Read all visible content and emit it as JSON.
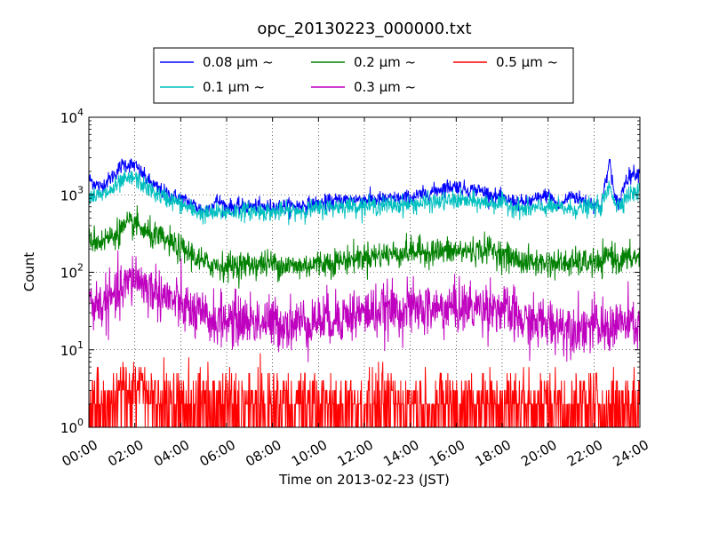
{
  "chart_data": {
    "type": "line",
    "title": "opc_20130223_000000.txt",
    "xlabel": "Time on 2013-02-23 (JST)",
    "ylabel": "Count",
    "y_scale": "log",
    "ylim": [
      1,
      10000
    ],
    "xlim": [
      "00:00",
      "24:00"
    ],
    "grid": true,
    "legend_position": "top-center, above plot",
    "x_ticks": [
      "00:00",
      "02:00",
      "04:00",
      "06:00",
      "08:00",
      "10:00",
      "12:00",
      "14:00",
      "16:00",
      "18:00",
      "20:00",
      "22:00",
      "24:00"
    ],
    "x_ticks_hours": [
      0,
      2,
      4,
      6,
      8,
      10,
      12,
      14,
      16,
      18,
      20,
      22,
      24
    ],
    "y_ticks": [
      {
        "value": 1,
        "base": "10",
        "exp": "0"
      },
      {
        "value": 10,
        "base": "10",
        "exp": "1"
      },
      {
        "value": 100,
        "base": "10",
        "exp": "2"
      },
      {
        "value": 1000,
        "base": "10",
        "exp": "3"
      },
      {
        "value": 10000,
        "base": "10",
        "exp": "4"
      }
    ],
    "series": [
      {
        "name": "0.08 μm ~",
        "color": "#0000ff",
        "x_hours": [
          0,
          0.5,
          1,
          1.5,
          2,
          2.5,
          3,
          3.5,
          4,
          4.5,
          5,
          5.3,
          5.6,
          6,
          7,
          8,
          9,
          10,
          11,
          12,
          13,
          14,
          14.8,
          15.5,
          16,
          16.5,
          17,
          18,
          19,
          20,
          20.5,
          21,
          21.5,
          22,
          22.3,
          22.7,
          22.9,
          23.1,
          23.4,
          23.7,
          24
        ],
        "values": [
          1600,
          1250,
          1700,
          2500,
          2400,
          1600,
          1200,
          1000,
          900,
          760,
          620,
          700,
          850,
          700,
          700,
          700,
          720,
          770,
          850,
          880,
          870,
          920,
          1050,
          1250,
          1300,
          1150,
          1150,
          870,
          770,
          1000,
          700,
          1000,
          850,
          780,
          700,
          2800,
          850,
          800,
          1600,
          1900,
          1900
        ],
        "noise": 0.05
      },
      {
        "name": "0.1 μm ~",
        "color": "#00bfbf",
        "x_hours": [
          0,
          0.5,
          1,
          1.5,
          2,
          2.5,
          3,
          3.5,
          4,
          4.5,
          5,
          5.5,
          6,
          7,
          8,
          9,
          10,
          11,
          12,
          13,
          14,
          15,
          16,
          17,
          18,
          19,
          20,
          21,
          22,
          22.3,
          22.7,
          23,
          23.5,
          24
        ],
        "values": [
          1000,
          950,
          1150,
          1500,
          1650,
          1250,
          1000,
          870,
          760,
          640,
          560,
          580,
          600,
          620,
          600,
          620,
          660,
          720,
          720,
          730,
          750,
          800,
          850,
          800,
          780,
          640,
          700,
          650,
          700,
          700,
          1300,
          700,
          1000,
          1100
        ],
        "noise": 0.06
      },
      {
        "name": "0.2 μm ~",
        "color": "#008000",
        "x_hours": [
          0,
          0.5,
          1,
          1.5,
          2,
          2.5,
          3,
          3.5,
          4,
          4.5,
          5,
          6,
          7,
          8,
          9,
          10,
          11,
          12,
          13,
          14,
          15,
          16,
          17,
          17.5,
          18,
          18.5,
          19,
          20,
          21,
          22,
          22.3,
          22.7,
          23,
          24
        ],
        "values": [
          270,
          250,
          290,
          370,
          430,
          320,
          280,
          240,
          200,
          170,
          130,
          120,
          125,
          130,
          118,
          130,
          140,
          160,
          170,
          185,
          185,
          185,
          190,
          200,
          170,
          150,
          135,
          130,
          130,
          135,
          120,
          180,
          140,
          160
        ],
        "noise": 0.09
      },
      {
        "name": "0.3 μm ~",
        "color": "#bf00bf",
        "x_hours": [
          0,
          0.5,
          1,
          1.5,
          2,
          2.5,
          3,
          3.5,
          4,
          4.5,
          5,
          6,
          7,
          8,
          9,
          10,
          11,
          12,
          13,
          14,
          15,
          16,
          17,
          17.5,
          18,
          18.5,
          19,
          20,
          21,
          22,
          22.5,
          23,
          24
        ],
        "values": [
          40,
          38,
          45,
          60,
          90,
          65,
          55,
          45,
          38,
          30,
          25,
          24,
          24,
          22,
          22,
          24,
          27,
          30,
          32,
          34,
          33,
          35,
          35,
          38,
          32,
          28,
          22,
          22,
          20,
          20,
          18,
          22,
          20
        ],
        "noise": 0.17
      },
      {
        "name": "0.5 μm ~",
        "color": "#ff0000",
        "x_hours": [
          0,
          24
        ],
        "values": [
          2,
          2
        ],
        "noise": 0
      }
    ]
  }
}
